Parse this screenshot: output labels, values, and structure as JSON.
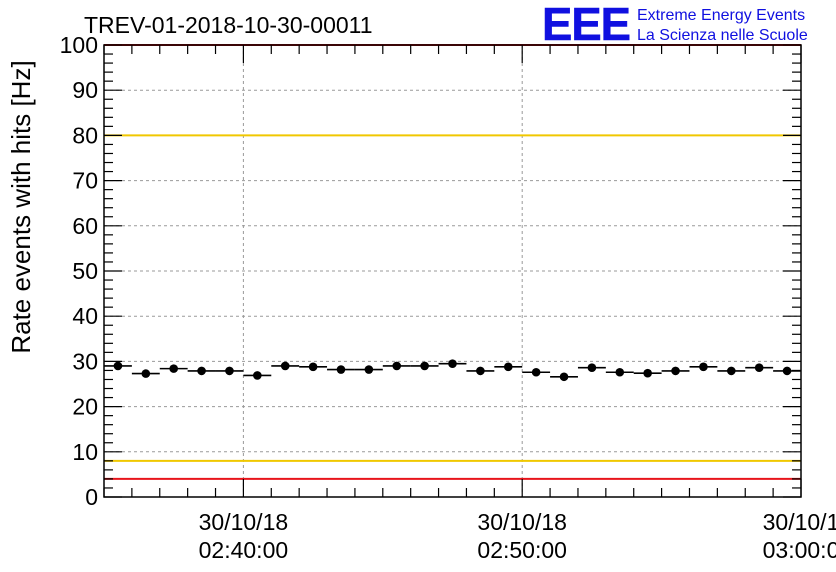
{
  "header": {
    "run_title": "TREV-01-2018-10-30-00011",
    "logo_mark": "EEE",
    "logo_line1": "Extreme Energy Events",
    "logo_line2": "La Scienza nelle Scuole"
  },
  "colors": {
    "axis": "#000000",
    "grid": "#9a9a9a",
    "limit_red": "#e8141b",
    "limit_yellow": "#f0c800",
    "marker": "#000000",
    "logo": "#1010e0"
  },
  "chart_data": {
    "type": "scatter",
    "title": "TREV-01-2018-10-30-00011",
    "xlabel": "",
    "ylabel": "Rate events with hits [Hz]",
    "ylim": [
      0,
      100
    ],
    "xlim_minutes": [
      -5,
      20
    ],
    "y_ticks": [
      0,
      10,
      20,
      30,
      40,
      50,
      60,
      70,
      80,
      90,
      100
    ],
    "x_ticks": [
      {
        "minute": 0,
        "date": "30/10/18",
        "time": "02:40:00"
      },
      {
        "minute": 10,
        "date": "30/10/18",
        "time": "02:50:00"
      },
      {
        "minute": 20,
        "date": "30/10/1",
        "time": "03:00:0"
      }
    ],
    "grid": true,
    "bin_width_minutes": 1,
    "series": [
      {
        "name": "rate",
        "x": [
          -4.5,
          -3.5,
          -2.5,
          -1.5,
          -0.5,
          0.5,
          1.5,
          2.5,
          3.5,
          4.5,
          5.5,
          6.5,
          7.5,
          8.5,
          9.5,
          10.5,
          11.5,
          12.5,
          13.5,
          14.5,
          15.5,
          16.5,
          17.5,
          18.5,
          19.5
        ],
        "y": [
          29.0,
          27.3,
          28.4,
          27.9,
          27.9,
          26.9,
          29.0,
          28.8,
          28.2,
          28.2,
          29.0,
          29.0,
          29.5,
          27.9,
          28.8,
          27.6,
          26.6,
          28.6,
          27.6,
          27.4,
          27.9,
          28.8,
          27.9,
          28.6,
          27.9
        ]
      }
    ],
    "reference_lines": [
      {
        "value": 100,
        "color": "red"
      },
      {
        "value": 80,
        "color": "yellow"
      },
      {
        "value": 8,
        "color": "yellow"
      },
      {
        "value": 4,
        "color": "red"
      }
    ]
  }
}
